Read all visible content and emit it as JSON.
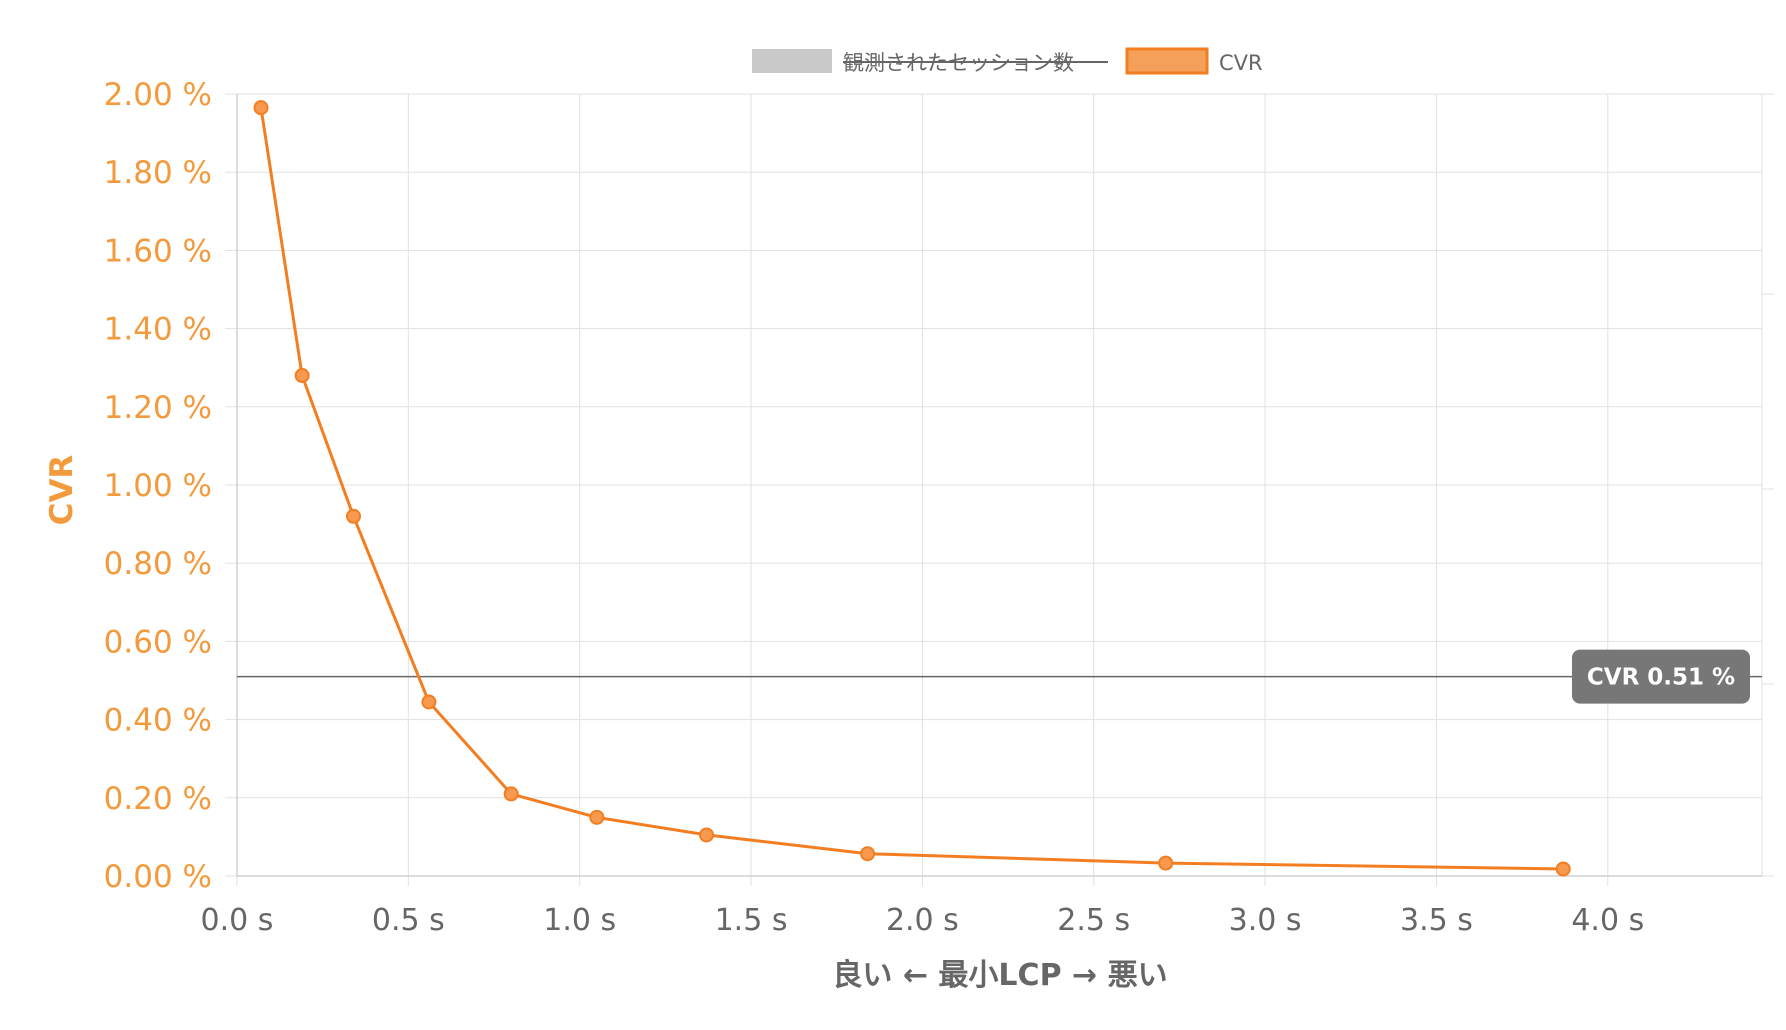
{
  "legend": {
    "items": [
      {
        "label": "観測されたセッション数",
        "color": "#c9c9c9",
        "hidden": true
      },
      {
        "label": "CVR",
        "color": "#f5a05a",
        "border": "#f37e22",
        "hidden": false
      }
    ]
  },
  "chart_data": {
    "type": "line",
    "x": [
      0.07,
      0.19,
      0.34,
      0.56,
      0.8,
      1.05,
      1.37,
      1.84,
      2.71,
      3.87
    ],
    "series": [
      {
        "name": "CVR",
        "values": [
          1.965,
          1.28,
          0.92,
          0.445,
          0.21,
          0.15,
          0.105,
          0.057,
          0.033,
          0.018
        ]
      }
    ],
    "xlabel": "良い ← 最小LCP → 悪い",
    "ylabel": "CVR",
    "xlim": [
      0,
      4.45
    ],
    "ylim": [
      0,
      2.0
    ],
    "x_ticks": [
      0.0,
      0.5,
      1.0,
      1.5,
      2.0,
      2.5,
      3.0,
      3.5,
      4.0
    ],
    "x_tick_labels": [
      "0.0 s",
      "0.5 s",
      "1.0 s",
      "1.5 s",
      "2.0 s",
      "2.5 s",
      "3.0 s",
      "3.5 s",
      "4.0 s"
    ],
    "y_ticks": [
      0,
      0.2,
      0.4,
      0.6,
      0.8,
      1.0,
      1.2,
      1.4,
      1.6,
      1.8,
      2.0
    ],
    "y_tick_labels": [
      "0.00 %",
      "0.20 %",
      "0.40 %",
      "0.60 %",
      "0.80 %",
      "1.00 %",
      "1.20 %",
      "1.40 %",
      "1.60 %",
      "1.80 %",
      "2.00 %"
    ],
    "reference_line": {
      "value": 0.51,
      "label": "CVR 0.51 %"
    },
    "grid": true,
    "legend_position": "top-center",
    "colors": {
      "line": "#f37e22",
      "axis_text": "#f39a3c",
      "x_text": "#666666",
      "grid": "#e1e1e1",
      "reference_line": "#666666",
      "reference_badge": "#777777"
    }
  }
}
